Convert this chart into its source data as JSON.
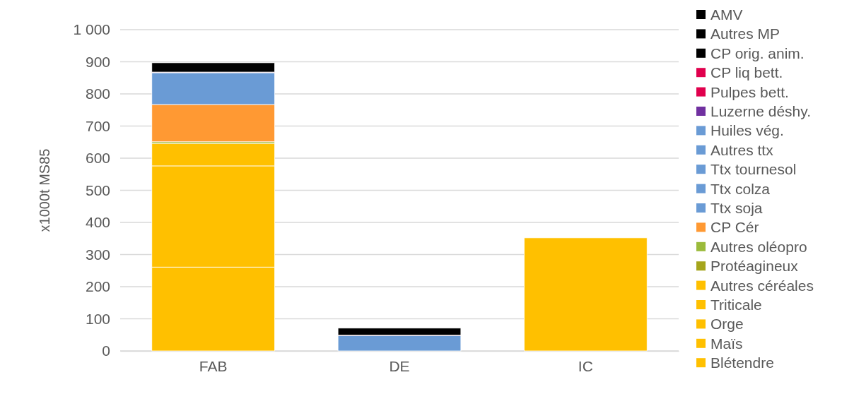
{
  "chart_data": {
    "type": "bar",
    "stacked": true,
    "ylabel": "x1000t MS85",
    "categories": [
      "FAB",
      "DE",
      "IC"
    ],
    "ylim": [
      0,
      1000
    ],
    "yticks": [
      0,
      100,
      200,
      300,
      400,
      500,
      600,
      700,
      800,
      900,
      {
        "value": 1000,
        "label": "1 000"
      }
    ],
    "grid": "y",
    "legend": "right",
    "series": [
      {
        "name": "Blétendre",
        "color": "#ffc000",
        "values": [
          261,
          0,
          0
        ]
      },
      {
        "name": "Maïs",
        "color": "#ffc000",
        "values": [
          315,
          0,
          352
        ]
      },
      {
        "name": "Orge",
        "color": "#ffc000",
        "values": [
          0,
          0,
          0
        ]
      },
      {
        "name": "Triticale",
        "color": "#ffc000",
        "values": [
          0,
          0,
          0
        ]
      },
      {
        "name": "Autres céréales",
        "color": "#ffc000",
        "values": [
          70,
          0,
          0
        ]
      },
      {
        "name": "Protéagineux",
        "color": "#a5a51c",
        "values": [
          0,
          0,
          0
        ]
      },
      {
        "name": "Autres oléopro",
        "color": "#9bbb3b",
        "values": [
          5,
          0,
          0
        ]
      },
      {
        "name": "CP Cér",
        "color": "#ff9933",
        "values": [
          116,
          0,
          0
        ]
      },
      {
        "name": "Ttx soja",
        "color": "#6a9bd5",
        "values": [
          0,
          0,
          0
        ]
      },
      {
        "name": "Ttx colza",
        "color": "#6a9bd5",
        "values": [
          0,
          0,
          0
        ]
      },
      {
        "name": "Ttx tournesol",
        "color": "#6a9bd5",
        "values": [
          99,
          48,
          0
        ]
      },
      {
        "name": "Autres ttx",
        "color": "#6a9bd5",
        "values": [
          0,
          0,
          0
        ]
      },
      {
        "name": "Huiles vég.",
        "color": "#6a9bd5",
        "values": [
          0,
          0,
          0
        ]
      },
      {
        "name": "Luzerne déshy.",
        "color": "#7030a0",
        "values": [
          0,
          0,
          0
        ]
      },
      {
        "name": "Pulpes bett.",
        "color": "#e0004d",
        "values": [
          0,
          0,
          0
        ]
      },
      {
        "name": "CP liq bett.",
        "color": "#e0004d",
        "values": [
          2,
          1,
          0
        ]
      },
      {
        "name": "CP orig. anim.",
        "color": "#000000",
        "values": [
          0,
          0,
          0
        ]
      },
      {
        "name": "Autres MP",
        "color": "#000000",
        "values": [
          0,
          22,
          0
        ]
      },
      {
        "name": "AMV",
        "color": "#000000",
        "values": [
          29,
          0,
          0
        ]
      }
    ]
  }
}
